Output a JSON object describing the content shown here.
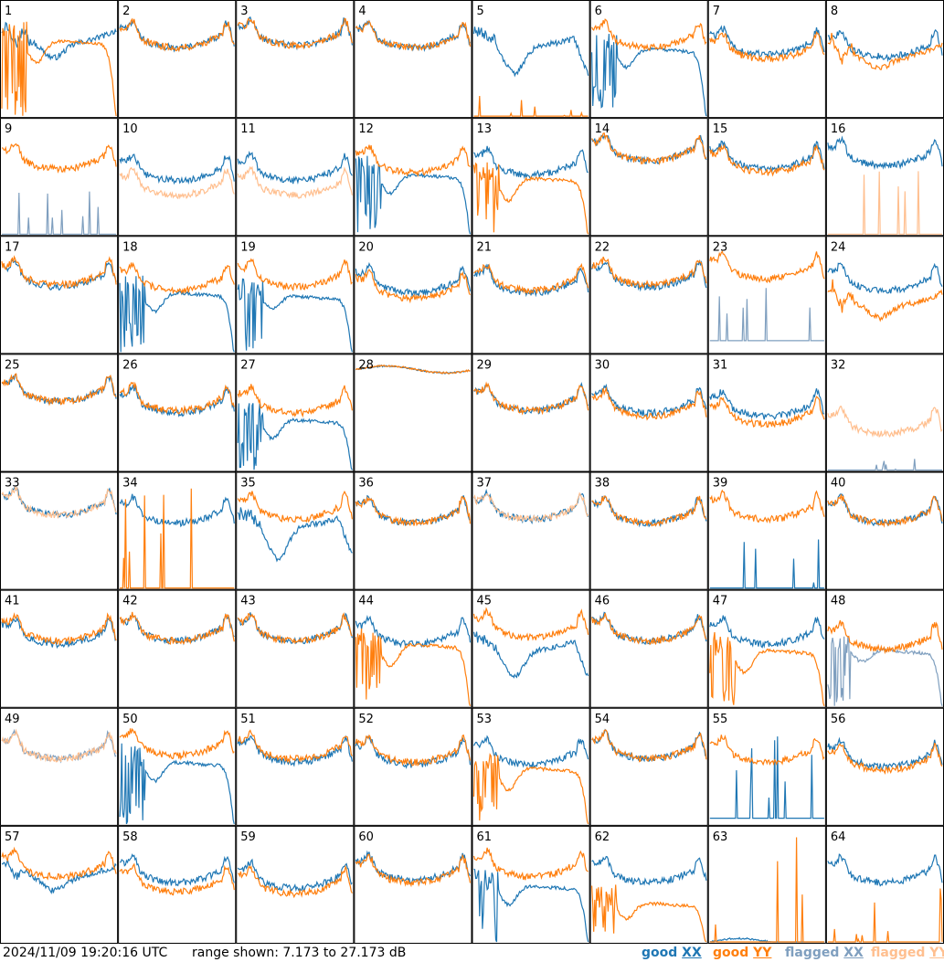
{
  "timestamp": "2024/11/09 19:20:16 UTC",
  "range_text": "range shown: 7.173 to 27.173 dB",
  "colors": {
    "good_xx": "#1f77b4",
    "good_yy": "#ff7f0e",
    "flagged_xx": "#7f9fbf",
    "flagged_yy": "#ffbf8f",
    "grid_line": "#000000",
    "background": "#ffffff"
  },
  "legend": [
    {
      "status": "good",
      "pol": "XX",
      "color": "#1f77b4"
    },
    {
      "status": "good",
      "pol": "YY",
      "color": "#ff7f0e"
    },
    {
      "status": "flagged",
      "pol": "XX",
      "color": "#7f9fbf"
    },
    {
      "status": "flagged",
      "pol": "YY",
      "color": "#ffbf8f"
    }
  ],
  "chart_data": {
    "type": "line",
    "layout": "small multiples 8x8",
    "y_range_db": [
      7.173,
      27.173
    ],
    "grid": "panel borders only",
    "legend_position": "bottom-right",
    "panels": [
      {
        "id": "1",
        "xx": {
          "status": "good",
          "shape": "dip",
          "level": 0.68,
          "extra": 0.12
        },
        "yy": {
          "status": "good",
          "shape": "droop",
          "level": 0.62,
          "extra": 0.35
        }
      },
      {
        "id": "2",
        "xx": {
          "status": "good",
          "shape": "u",
          "level": 0.68
        },
        "yy": {
          "status": "good",
          "shape": "u",
          "level": 0.68
        }
      },
      {
        "id": "3",
        "xx": {
          "status": "good",
          "shape": "u",
          "level": 0.7
        },
        "yy": {
          "status": "good",
          "shape": "u",
          "level": 0.7
        }
      },
      {
        "id": "4",
        "xx": {
          "status": "good",
          "shape": "u",
          "level": 0.68
        },
        "yy": {
          "status": "good",
          "shape": "u",
          "level": 0.68
        }
      },
      {
        "id": "5",
        "xx": {
          "status": "good",
          "shape": "bowl",
          "level": 0.62,
          "extra": 0.25
        },
        "yy": {
          "status": "good",
          "shape": "spikes",
          "level": 0.0,
          "extra": 0.2
        }
      },
      {
        "id": "6",
        "xx": {
          "status": "good",
          "shape": "droop",
          "level": 0.55,
          "extra": 0.3
        },
        "yy": {
          "status": "good",
          "shape": "u",
          "level": 0.68
        }
      },
      {
        "id": "7",
        "xx": {
          "status": "good",
          "shape": "u",
          "level": 0.62
        },
        "yy": {
          "status": "good",
          "shape": "u",
          "level": 0.58
        }
      },
      {
        "id": "8",
        "xx": {
          "status": "good",
          "shape": "u",
          "level": 0.6
        },
        "yy": {
          "status": "good",
          "shape": "dip",
          "level": 0.55,
          "extra": 0.08
        }
      },
      {
        "id": "9",
        "xx": {
          "status": "flagged",
          "shape": "spikes",
          "level": 0.0,
          "extra": 0.45
        },
        "yy": {
          "status": "good",
          "shape": "u",
          "level": 0.65
        }
      },
      {
        "id": "10",
        "xx": {
          "status": "good",
          "shape": "u",
          "level": 0.55
        },
        "yy": {
          "status": "flagged",
          "shape": "u",
          "level": 0.42
        }
      },
      {
        "id": "11",
        "xx": {
          "status": "good",
          "shape": "u",
          "level": 0.55
        },
        "yy": {
          "status": "flagged",
          "shape": "u",
          "level": 0.42
        }
      },
      {
        "id": "12",
        "xx": {
          "status": "good",
          "shape": "droop",
          "level": 0.48,
          "extra": 0.3
        },
        "yy": {
          "status": "good",
          "shape": "u",
          "level": 0.62
        }
      },
      {
        "id": "13",
        "xx": {
          "status": "good",
          "shape": "u",
          "level": 0.6
        },
        "yy": {
          "status": "good",
          "shape": "droop",
          "level": 0.45,
          "extra": 0.35
        }
      },
      {
        "id": "14",
        "xx": {
          "status": "good",
          "shape": "u",
          "level": 0.72
        },
        "yy": {
          "status": "good",
          "shape": "u",
          "level": 0.72
        }
      },
      {
        "id": "15",
        "xx": {
          "status": "good",
          "shape": "u",
          "level": 0.65
        },
        "yy": {
          "status": "good",
          "shape": "u",
          "level": 0.62
        }
      },
      {
        "id": "16",
        "xx": {
          "status": "good",
          "shape": "u",
          "level": 0.68
        },
        "yy": {
          "status": "flagged",
          "shape": "spikes",
          "level": 0.0,
          "extra": 0.6
        }
      },
      {
        "id": "17",
        "xx": {
          "status": "good",
          "shape": "u",
          "level": 0.65
        },
        "yy": {
          "status": "good",
          "shape": "u",
          "level": 0.67
        }
      },
      {
        "id": "18",
        "xx": {
          "status": "good",
          "shape": "droop",
          "level": 0.48,
          "extra": 0.3
        },
        "yy": {
          "status": "good",
          "shape": "u",
          "level": 0.62
        }
      },
      {
        "id": "19",
        "xx": {
          "status": "good",
          "shape": "droop",
          "level": 0.45,
          "extra": 0.2
        },
        "yy": {
          "status": "good",
          "shape": "u",
          "level": 0.65
        }
      },
      {
        "id": "20",
        "xx": {
          "status": "good",
          "shape": "u",
          "level": 0.6
        },
        "yy": {
          "status": "good",
          "shape": "u",
          "level": 0.55
        }
      },
      {
        "id": "21",
        "xx": {
          "status": "good",
          "shape": "u",
          "level": 0.6
        },
        "yy": {
          "status": "good",
          "shape": "u",
          "level": 0.62
        }
      },
      {
        "id": "22",
        "xx": {
          "status": "good",
          "shape": "u",
          "level": 0.65
        },
        "yy": {
          "status": "good",
          "shape": "u",
          "level": 0.67
        }
      },
      {
        "id": "23",
        "xx": {
          "status": "flagged",
          "shape": "spikes",
          "level": 0.1,
          "extra": 0.7
        },
        "yy": {
          "status": "good",
          "shape": "u",
          "level": 0.72
        }
      },
      {
        "id": "24",
        "xx": {
          "status": "good",
          "shape": "u",
          "level": 0.62
        },
        "yy": {
          "status": "good",
          "shape": "dip",
          "level": 0.45,
          "extra": 0.1
        }
      },
      {
        "id": "25",
        "xx": {
          "status": "good",
          "shape": "u",
          "level": 0.68
        },
        "yy": {
          "status": "good",
          "shape": "u",
          "level": 0.68
        }
      },
      {
        "id": "26",
        "xx": {
          "status": "good",
          "shape": "u",
          "level": 0.58
        },
        "yy": {
          "status": "good",
          "shape": "u",
          "level": 0.6
        }
      },
      {
        "id": "27",
        "xx": {
          "status": "good",
          "shape": "droop",
          "level": 0.4,
          "extra": 0.3
        },
        "yy": {
          "status": "good",
          "shape": "u",
          "level": 0.58
        }
      },
      {
        "id": "28",
        "xx": {
          "status": "good",
          "shape": "flat",
          "level": 0.88
        },
        "yy": {
          "status": "good",
          "shape": "flat",
          "level": 0.88
        }
      },
      {
        "id": "29",
        "xx": {
          "status": "good",
          "shape": "u",
          "level": 0.6
        },
        "yy": {
          "status": "good",
          "shape": "u",
          "level": 0.6
        }
      },
      {
        "id": "30",
        "xx": {
          "status": "good",
          "shape": "u",
          "level": 0.58
        },
        "yy": {
          "status": "good",
          "shape": "u",
          "level": 0.55
        }
      },
      {
        "id": "31",
        "xx": {
          "status": "good",
          "shape": "u",
          "level": 0.55
        },
        "yy": {
          "status": "good",
          "shape": "u",
          "level": 0.48
        }
      },
      {
        "id": "32",
        "xx": {
          "status": "flagged",
          "shape": "spikes",
          "level": 0.0,
          "extra": 0.1
        },
        "yy": {
          "status": "flagged",
          "shape": "u",
          "level": 0.4
        }
      },
      {
        "id": "33",
        "xx": {
          "status": "good",
          "shape": "u",
          "level": 0.72
        },
        "yy": {
          "status": "flagged",
          "shape": "u",
          "level": 0.72
        }
      },
      {
        "id": "34",
        "xx": {
          "status": "good",
          "shape": "u",
          "level": 0.65
        },
        "yy": {
          "status": "good",
          "shape": "spikes",
          "level": 0.0,
          "extra": 0.9
        }
      },
      {
        "id": "35",
        "xx": {
          "status": "good",
          "shape": "bowl",
          "level": 0.55,
          "extra": 0.3
        },
        "yy": {
          "status": "good",
          "shape": "u",
          "level": 0.68
        }
      },
      {
        "id": "36",
        "xx": {
          "status": "good",
          "shape": "u",
          "level": 0.65
        },
        "yy": {
          "status": "good",
          "shape": "u",
          "level": 0.65
        }
      },
      {
        "id": "37",
        "xx": {
          "status": "good",
          "shape": "u",
          "level": 0.68
        },
        "yy": {
          "status": "flagged",
          "shape": "u",
          "level": 0.68
        }
      },
      {
        "id": "38",
        "xx": {
          "status": "good",
          "shape": "u",
          "level": 0.65
        },
        "yy": {
          "status": "good",
          "shape": "u",
          "level": 0.65
        }
      },
      {
        "id": "39",
        "xx": {
          "status": "good",
          "shape": "spikes",
          "level": 0.0,
          "extra": 0.5
        },
        "yy": {
          "status": "good",
          "shape": "u",
          "level": 0.68
        }
      },
      {
        "id": "40",
        "xx": {
          "status": "good",
          "shape": "u",
          "level": 0.65
        },
        "yy": {
          "status": "good",
          "shape": "u",
          "level": 0.65
        }
      },
      {
        "id": "41",
        "xx": {
          "status": "good",
          "shape": "u",
          "level": 0.62
        },
        "yy": {
          "status": "good",
          "shape": "u",
          "level": 0.65
        }
      },
      {
        "id": "42",
        "xx": {
          "status": "good",
          "shape": "u",
          "level": 0.65
        },
        "yy": {
          "status": "good",
          "shape": "u",
          "level": 0.65
        }
      },
      {
        "id": "43",
        "xx": {
          "status": "good",
          "shape": "u",
          "level": 0.65
        },
        "yy": {
          "status": "good",
          "shape": "u",
          "level": 0.65
        }
      },
      {
        "id": "44",
        "xx": {
          "status": "good",
          "shape": "u",
          "level": 0.62
        },
        "yy": {
          "status": "good",
          "shape": "droop",
          "level": 0.5,
          "extra": 0.35
        }
      },
      {
        "id": "45",
        "xx": {
          "status": "good",
          "shape": "bowl",
          "level": 0.5,
          "extra": 0.25
        },
        "yy": {
          "status": "good",
          "shape": "u",
          "level": 0.68
        }
      },
      {
        "id": "46",
        "xx": {
          "status": "good",
          "shape": "u",
          "level": 0.65
        },
        "yy": {
          "status": "good",
          "shape": "u",
          "level": 0.65
        }
      },
      {
        "id": "47",
        "xx": {
          "status": "good",
          "shape": "u",
          "level": 0.62
        },
        "yy": {
          "status": "good",
          "shape": "droop",
          "level": 0.45,
          "extra": 0.35
        }
      },
      {
        "id": "48",
        "xx": {
          "status": "flagged",
          "shape": "droop",
          "level": 0.45,
          "extra": 0.2
        },
        "yy": {
          "status": "good",
          "shape": "u",
          "level": 0.58
        }
      },
      {
        "id": "49",
        "xx": {
          "status": "flagged",
          "shape": "u",
          "level": 0.65
        },
        "yy": {
          "status": "flagged",
          "shape": "u",
          "level": 0.65
        }
      },
      {
        "id": "50",
        "xx": {
          "status": "good",
          "shape": "droop",
          "level": 0.5,
          "extra": 0.3
        },
        "yy": {
          "status": "good",
          "shape": "u",
          "level": 0.68
        }
      },
      {
        "id": "51",
        "xx": {
          "status": "good",
          "shape": "u",
          "level": 0.62
        },
        "yy": {
          "status": "good",
          "shape": "u",
          "level": 0.65
        }
      },
      {
        "id": "52",
        "xx": {
          "status": "good",
          "shape": "u",
          "level": 0.6
        },
        "yy": {
          "status": "good",
          "shape": "u",
          "level": 0.62
        }
      },
      {
        "id": "53",
        "xx": {
          "status": "good",
          "shape": "u",
          "level": 0.6
        },
        "yy": {
          "status": "good",
          "shape": "droop",
          "level": 0.45,
          "extra": 0.35
        }
      },
      {
        "id": "54",
        "xx": {
          "status": "good",
          "shape": "u",
          "level": 0.65
        },
        "yy": {
          "status": "good",
          "shape": "u",
          "level": 0.65
        }
      },
      {
        "id": "55",
        "xx": {
          "status": "good",
          "shape": "spikes",
          "level": 0.05,
          "extra": 0.85
        },
        "yy": {
          "status": "good",
          "shape": "u",
          "level": 0.62
        }
      },
      {
        "id": "56",
        "xx": {
          "status": "good",
          "shape": "u",
          "level": 0.58
        },
        "yy": {
          "status": "good",
          "shape": "u",
          "level": 0.55
        }
      },
      {
        "id": "57",
        "xx": {
          "status": "good",
          "shape": "dip",
          "level": 0.6,
          "extra": 0.1
        },
        "yy": {
          "status": "good",
          "shape": "u",
          "level": 0.65
        }
      },
      {
        "id": "58",
        "xx": {
          "status": "good",
          "shape": "u",
          "level": 0.6
        },
        "yy": {
          "status": "good",
          "shape": "u",
          "level": 0.52
        }
      },
      {
        "id": "59",
        "xx": {
          "status": "good",
          "shape": "u",
          "level": 0.55
        },
        "yy": {
          "status": "good",
          "shape": "u",
          "level": 0.5
        }
      },
      {
        "id": "60",
        "xx": {
          "status": "good",
          "shape": "u",
          "level": 0.62
        },
        "yy": {
          "status": "good",
          "shape": "u",
          "level": 0.6
        }
      },
      {
        "id": "61",
        "xx": {
          "status": "good",
          "shape": "droop",
          "level": 0.45,
          "extra": 0.3
        },
        "yy": {
          "status": "good",
          "shape": "u",
          "level": 0.65
        }
      },
      {
        "id": "62",
        "xx": {
          "status": "good",
          "shape": "u",
          "level": 0.6
        },
        "yy": {
          "status": "good",
          "shape": "droop",
          "level": 0.3,
          "extra": 0.25
        }
      },
      {
        "id": "63",
        "xx": {
          "status": "good",
          "shape": "flat",
          "level": 0.0
        },
        "yy": {
          "status": "good",
          "shape": "spikes",
          "level": 0.0,
          "extra": 0.95
        }
      },
      {
        "id": "64",
        "xx": {
          "status": "good",
          "shape": "u",
          "level": 0.6
        },
        "yy": {
          "status": "good",
          "shape": "spikes",
          "level": 0.0,
          "extra": 0.5
        }
      }
    ]
  }
}
